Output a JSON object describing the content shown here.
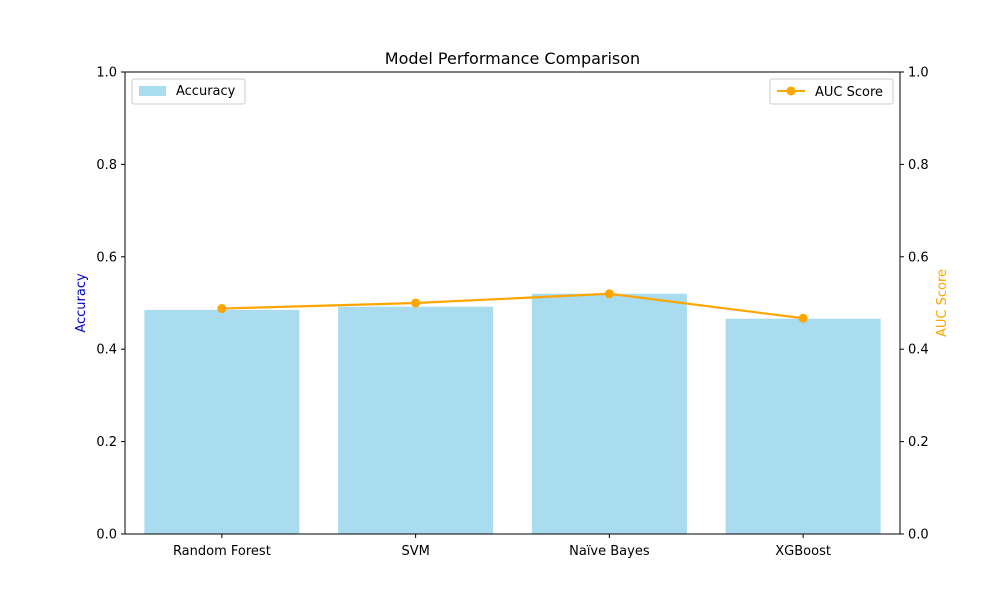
{
  "chart_data": {
    "type": "bar",
    "title": "Model Performance Comparison",
    "categories": [
      "Random Forest",
      "SVM",
      "Naïve Bayes",
      "XGBoost"
    ],
    "series": [
      {
        "name": "Accuracy",
        "type": "bar",
        "axis": "left",
        "color": "#a8dcee",
        "values": [
          0.485,
          0.492,
          0.52,
          0.466
        ]
      },
      {
        "name": "AUC Score",
        "type": "line",
        "axis": "right",
        "color": "#ffa500",
        "marker": "circle",
        "values": [
          0.488,
          0.5,
          0.52,
          0.467
        ]
      }
    ],
    "ylabel": "Accuracy",
    "ylabel_color": "#0000cd",
    "y2label": "AUC Score",
    "y2label_color": "#ffa500",
    "ylim": [
      0,
      1
    ],
    "y2lim": [
      0,
      1
    ],
    "yticks": [
      "0.0",
      "0.2",
      "0.4",
      "0.6",
      "0.8",
      "1.0"
    ],
    "y2ticks": [
      "0.0",
      "0.2",
      "0.4",
      "0.6",
      "0.8",
      "1.0"
    ],
    "grid": false,
    "legends": [
      {
        "series": "Accuracy",
        "placement": "upper-left"
      },
      {
        "series": "AUC Score",
        "placement": "upper-right"
      }
    ]
  }
}
